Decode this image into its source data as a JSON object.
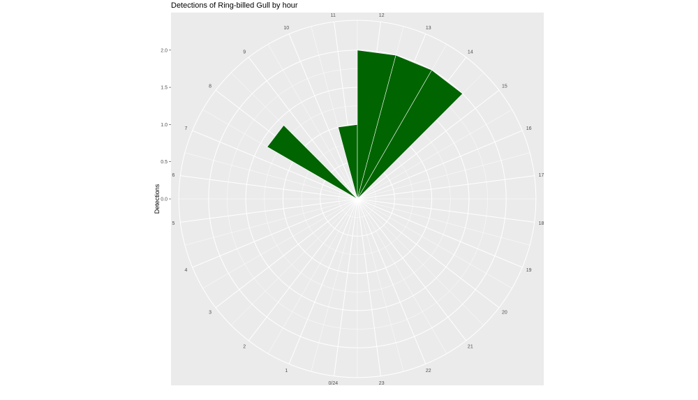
{
  "chart_data": {
    "type": "bar",
    "coord": "polar",
    "title": "Detections of Ring-billed Gull by hour",
    "ylabel": "Detections",
    "xlabel": "",
    "ylim": [
      0,
      2.4
    ],
    "y_ticks": [
      "0.0",
      "0.5",
      "1.0",
      "1.5",
      "2.0"
    ],
    "y_tick_values": [
      0,
      0.5,
      1,
      1.5,
      2
    ],
    "hour_labels": [
      "0/24",
      "1",
      "2",
      "3",
      "4",
      "5",
      "6",
      "7",
      "8",
      "9",
      "10",
      "11",
      "12",
      "13",
      "14",
      "15",
      "16",
      "17",
      "18",
      "19",
      "20",
      "21",
      "22",
      "23"
    ],
    "categories": [
      0,
      1,
      2,
      3,
      4,
      5,
      6,
      7,
      8,
      9,
      10,
      11,
      12,
      13,
      14,
      15,
      16,
      17,
      18,
      19,
      20,
      21,
      22,
      23
    ],
    "values": [
      0,
      0,
      0,
      0,
      0,
      0,
      0,
      0,
      1.4,
      0,
      0,
      1,
      2,
      2,
      2,
      0,
      0,
      0,
      0,
      0,
      0,
      0,
      0,
      0
    ],
    "bar_color": "#006400",
    "panel_color": "#ebebeb",
    "grid": true
  }
}
